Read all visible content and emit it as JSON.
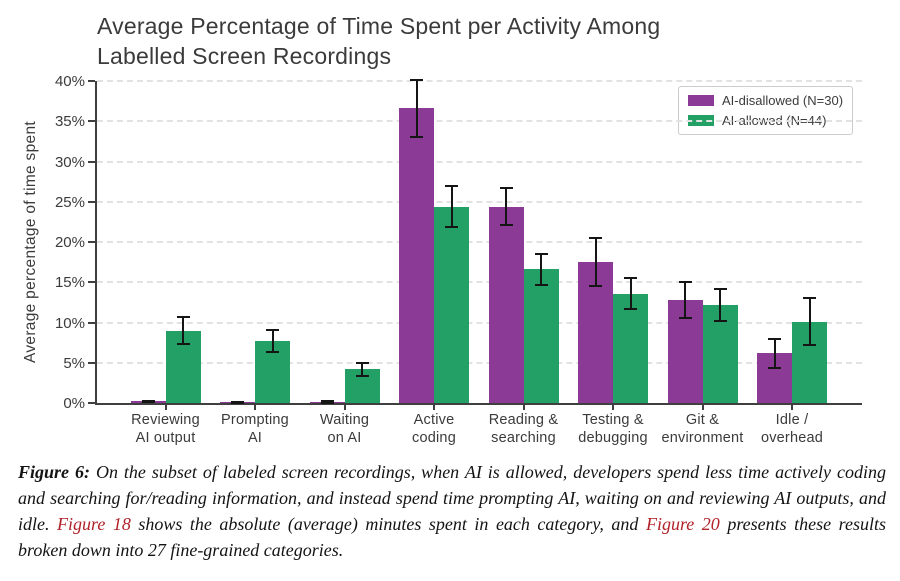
{
  "figure": {
    "title_line1": "Average Percentage of Time Spent per Activity Among",
    "title_line2": "Labelled Screen Recordings",
    "ylabel": "Average percentage of time spent"
  },
  "legend": {
    "items": [
      {
        "label": "AI-disallowed (N=30)",
        "color": "#8b3a96"
      },
      {
        "label": "AI-allowed (N=44)",
        "color": "#23a065"
      }
    ]
  },
  "chart_data": {
    "type": "bar",
    "title": "Average Percentage of Time Spent per Activity Among Labelled Screen Recordings",
    "xlabel": "",
    "ylabel": "Average percentage of time spent",
    "ylim": [
      0,
      40
    ],
    "yticks": [
      0,
      5,
      10,
      15,
      20,
      25,
      30,
      35,
      40
    ],
    "ytick_labels": [
      "0%",
      "5%",
      "10%",
      "15%",
      "20%",
      "25%",
      "30%",
      "35%",
      "40%"
    ],
    "grid": "horizontal dashed",
    "legend_position": "upper right",
    "error_bars": true,
    "categories": [
      "Reviewing AI output",
      "Prompting AI",
      "Waiting on AI",
      "Active coding",
      "Reading & searching",
      "Testing & debugging",
      "Git & environment",
      "Idle / overhead"
    ],
    "tick_lines": [
      [
        "Reviewing",
        "AI output"
      ],
      [
        "Prompting",
        "AI"
      ],
      [
        "Waiting",
        "on AI"
      ],
      [
        "Active",
        "coding"
      ],
      [
        "Reading &",
        "searching"
      ],
      [
        "Testing &",
        "debugging"
      ],
      [
        "Git &",
        "environment"
      ],
      [
        "Idle /",
        "overhead"
      ]
    ],
    "series": [
      {
        "name": "AI-disallowed (N=30)",
        "color": "#8b3a96",
        "values": [
          0.2,
          0.1,
          0.1,
          36.6,
          24.4,
          17.5,
          12.8,
          6.2
        ],
        "errors": [
          0.1,
          0.05,
          0.1,
          3.5,
          2.3,
          3.0,
          2.2,
          1.8
        ]
      },
      {
        "name": "AI-allowed (N=44)",
        "color": "#23a065",
        "values": [
          9.0,
          7.7,
          4.2,
          24.4,
          16.6,
          13.6,
          12.2,
          10.1
        ],
        "errors": [
          1.7,
          1.4,
          0.8,
          2.5,
          1.9,
          1.9,
          2.0,
          2.9
        ]
      }
    ]
  },
  "caption": {
    "segments": [
      {
        "text": "Figure 6:",
        "style": "label"
      },
      {
        "text": " On the subset of labeled screen recordings, when AI is allowed, developers spend less time actively coding and searching for/reading information, and instead spend time prompting AI, waiting on and reviewing AI outputs, and idle. ",
        "style": "normal"
      },
      {
        "text": "Figure 18",
        "style": "link"
      },
      {
        "text": " shows the absolute (average) minutes spent in each category, and ",
        "style": "normal"
      },
      {
        "text": "Figure 20",
        "style": "link"
      },
      {
        "text": " presents these results broken down into 27 fine-grained categories.",
        "style": "normal"
      }
    ]
  }
}
